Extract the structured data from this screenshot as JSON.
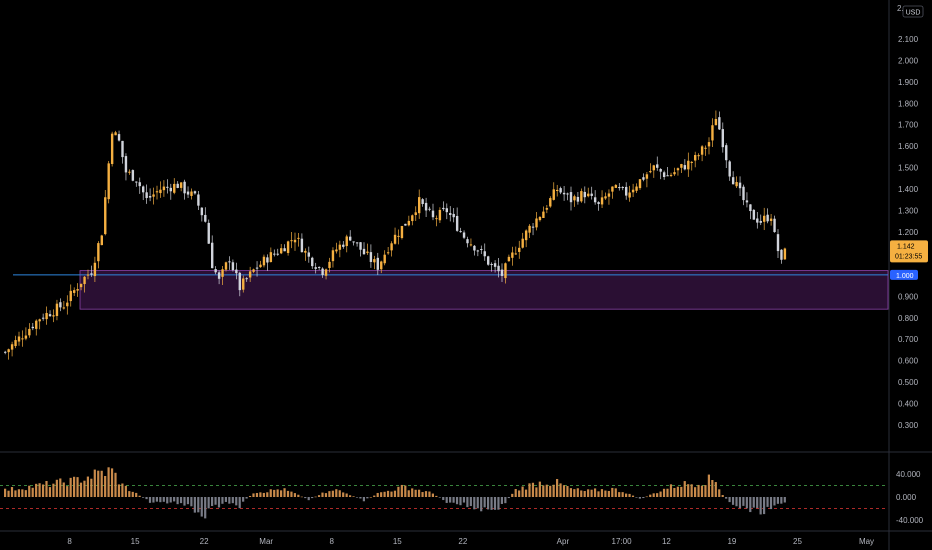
{
  "currency_label": "USD",
  "colors": {
    "background": "#000000",
    "up": "#f5b041",
    "down": "#d1d4dc",
    "zone_fill": "#2a0f33",
    "zone_border": "#8e44ad",
    "support_line": "#2e86de",
    "osc_pos": "#c98a4b",
    "osc_neg": "#787b86",
    "osc_upper_line": "#4caf50",
    "osc_lower_line": "#e53935",
    "price_badge": "#f5b041",
    "level_badge": "#2962ff"
  },
  "price_axis": {
    "ticks": [
      "2.100",
      "2.000",
      "1.900",
      "1.800",
      "1.700",
      "1.600",
      "1.500",
      "1.400",
      "1.300",
      "1.200",
      "1.100",
      "1.000",
      "0.900",
      "0.800",
      "0.700",
      "0.600",
      "0.500",
      "0.400",
      "0.300"
    ],
    "top_tick": "2.",
    "tick_values": [
      2.1,
      2.0,
      1.9,
      1.8,
      1.7,
      1.6,
      1.5,
      1.4,
      1.3,
      1.2,
      1.1,
      1.0,
      0.9,
      0.8,
      0.7,
      0.6,
      0.5,
      0.4,
      0.3
    ]
  },
  "current_price": {
    "value": 1.142,
    "label": "1.142",
    "countdown": "01:23:55"
  },
  "support_level": {
    "value": 1.0,
    "label": "1.000"
  },
  "demand_zone": {
    "top": 1.02,
    "bottom": 0.84
  },
  "oscillator_axis": {
    "ticks": [
      "40.000",
      "0.000",
      "-40.000"
    ],
    "tick_values": [
      40,
      0,
      -40
    ],
    "upper_level": 20,
    "lower_level": -20
  },
  "time_axis": {
    "labels": [
      "8",
      "15",
      "22",
      "Mar",
      "8",
      "15",
      "22",
      "Apr",
      "17:00",
      "12",
      "19",
      "25",
      "May"
    ],
    "bar_index": [
      19,
      38,
      58,
      76,
      95,
      114,
      133,
      162,
      179,
      192,
      211,
      230,
      250
    ]
  },
  "chart_data": {
    "type": "candlestick",
    "x_labels": [
      "8",
      "15",
      "22",
      "Mar",
      "8",
      "15",
      "22",
      "Apr",
      "17:00",
      "12",
      "19",
      "25",
      "May"
    ],
    "ylim": [
      0.2,
      2.2
    ],
    "anchors": [
      [
        0,
        0.64
      ],
      [
        10,
        0.8
      ],
      [
        17,
        0.86
      ],
      [
        22,
        0.97
      ],
      [
        25,
        1.02
      ],
      [
        28,
        1.2
      ],
      [
        31,
        1.68
      ],
      [
        33,
        1.62
      ],
      [
        35,
        1.48
      ],
      [
        38,
        1.45
      ],
      [
        41,
        1.35
      ],
      [
        45,
        1.4
      ],
      [
        50,
        1.42
      ],
      [
        55,
        1.36
      ],
      [
        58,
        1.25
      ],
      [
        60,
        1.05
      ],
      [
        62,
        0.97
      ],
      [
        65,
        1.08
      ],
      [
        68,
        0.94
      ],
      [
        72,
        1.02
      ],
      [
        76,
        1.08
      ],
      [
        80,
        1.12
      ],
      [
        84,
        1.18
      ],
      [
        88,
        1.08
      ],
      [
        92,
        1.02
      ],
      [
        96,
        1.12
      ],
      [
        100,
        1.18
      ],
      [
        104,
        1.1
      ],
      [
        108,
        1.04
      ],
      [
        112,
        1.16
      ],
      [
        116,
        1.24
      ],
      [
        120,
        1.34
      ],
      [
        124,
        1.26
      ],
      [
        128,
        1.3
      ],
      [
        133,
        1.18
      ],
      [
        137,
        1.12
      ],
      [
        141,
        1.04
      ],
      [
        144,
        1.0
      ],
      [
        148,
        1.12
      ],
      [
        152,
        1.22
      ],
      [
        156,
        1.3
      ],
      [
        160,
        1.4
      ],
      [
        164,
        1.35
      ],
      [
        168,
        1.38
      ],
      [
        172,
        1.32
      ],
      [
        176,
        1.4
      ],
      [
        180,
        1.38
      ],
      [
        184,
        1.44
      ],
      [
        188,
        1.5
      ],
      [
        192,
        1.46
      ],
      [
        196,
        1.5
      ],
      [
        200,
        1.54
      ],
      [
        204,
        1.62
      ],
      [
        206,
        1.74
      ],
      [
        208,
        1.62
      ],
      [
        210,
        1.48
      ],
      [
        213,
        1.38
      ],
      [
        216,
        1.28
      ],
      [
        219,
        1.25
      ],
      [
        222,
        1.28
      ],
      [
        223,
        1.18
      ],
      [
        225,
        1.05
      ],
      [
        226,
        1.14
      ]
    ],
    "oscillator": {
      "name": "",
      "anchors": [
        [
          0,
          12
        ],
        [
          10,
          20
        ],
        [
          20,
          28
        ],
        [
          28,
          42
        ],
        [
          31,
          45
        ],
        [
          34,
          20
        ],
        [
          38,
          6
        ],
        [
          42,
          -8
        ],
        [
          50,
          -10
        ],
        [
          56,
          -25
        ],
        [
          58,
          -35
        ],
        [
          60,
          -18
        ],
        [
          64,
          -12
        ],
        [
          68,
          -15
        ],
        [
          72,
          8
        ],
        [
          76,
          10
        ],
        [
          80,
          14
        ],
        [
          84,
          6
        ],
        [
          88,
          -5
        ],
        [
          92,
          6
        ],
        [
          96,
          12
        ],
        [
          100,
          4
        ],
        [
          104,
          -6
        ],
        [
          108,
          6
        ],
        [
          112,
          12
        ],
        [
          116,
          18
        ],
        [
          120,
          12
        ],
        [
          124,
          6
        ],
        [
          128,
          -8
        ],
        [
          132,
          -12
        ],
        [
          136,
          -18
        ],
        [
          140,
          -22
        ],
        [
          144,
          -16
        ],
        [
          148,
          12
        ],
        [
          152,
          20
        ],
        [
          156,
          26
        ],
        [
          160,
          24
        ],
        [
          164,
          14
        ],
        [
          168,
          10
        ],
        [
          172,
          12
        ],
        [
          176,
          14
        ],
        [
          180,
          8
        ],
        [
          184,
          -4
        ],
        [
          188,
          6
        ],
        [
          192,
          16
        ],
        [
          196,
          22
        ],
        [
          200,
          24
        ],
        [
          204,
          30
        ],
        [
          206,
          28
        ],
        [
          208,
          4
        ],
        [
          210,
          -10
        ],
        [
          214,
          -20
        ],
        [
          218,
          -26
        ],
        [
          222,
          -20
        ],
        [
          226,
          -12
        ]
      ]
    }
  }
}
